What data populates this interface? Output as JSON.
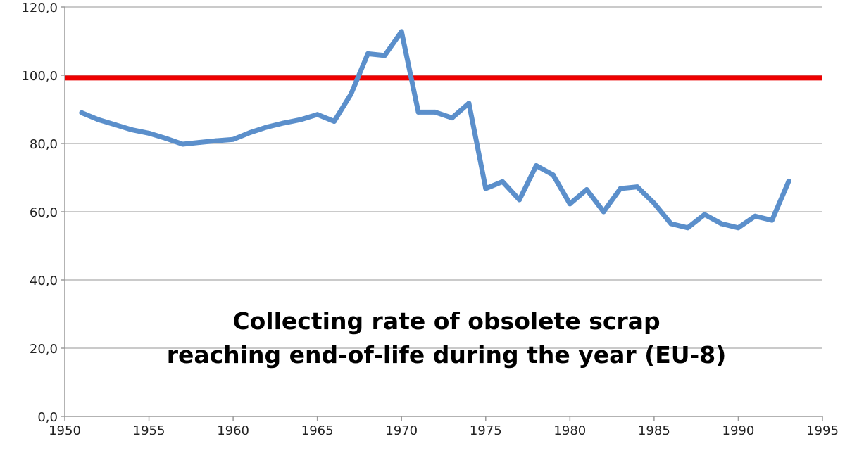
{
  "chart_data": {
    "type": "line",
    "title": "",
    "xlabel": "",
    "ylabel": "",
    "xlim": [
      1950,
      1995
    ],
    "ylim": [
      0,
      120
    ],
    "x_ticks": [
      1950,
      1955,
      1960,
      1965,
      1970,
      1975,
      1980,
      1985,
      1990,
      1995
    ],
    "y_ticks": [
      0,
      20,
      40,
      60,
      80,
      100,
      120
    ],
    "x_tick_labels": [
      "1950",
      "1955",
      "1960",
      "1965",
      "1970",
      "1975",
      "1980",
      "1985",
      "1990",
      "1995"
    ],
    "y_tick_labels": [
      "0,0",
      "20,0",
      "40,0",
      "60,0",
      "80,0",
      "100,0",
      "120,0"
    ],
    "grid": true,
    "legend": "none",
    "annotation_lines": [
      "Collecting rate of obsolete scrap",
      "reaching end-of-life during the year (EU-8)"
    ],
    "series": [
      {
        "color": "#5b8fcb",
        "x": [
          1951,
          1952,
          1953,
          1954,
          1955,
          1956,
          1957,
          1958,
          1959,
          1960,
          1961,
          1962,
          1963,
          1964,
          1965,
          1966,
          1967,
          1968,
          1969,
          1970,
          1971,
          1972,
          1973,
          1974,
          1975,
          1976,
          1977,
          1978,
          1979,
          1980,
          1981,
          1982,
          1983,
          1984,
          1985,
          1986,
          1987,
          1988,
          1989,
          1990,
          1991,
          1992,
          1993
        ],
        "values": [
          89.0,
          87.0,
          85.5,
          84.0,
          83.0,
          81.5,
          79.8,
          80.3,
          80.8,
          81.2,
          83.2,
          84.8,
          86.0,
          87.0,
          88.5,
          86.5,
          94.5,
          106.3,
          105.8,
          112.8,
          89.2,
          89.2,
          87.5,
          91.8,
          66.8,
          68.8,
          63.5,
          73.5,
          70.8,
          62.3,
          66.5,
          60.0,
          66.8,
          67.3,
          62.5,
          56.5,
          55.3,
          59.2,
          56.5,
          55.3,
          58.7,
          57.5,
          69.0
        ]
      }
    ],
    "reference_line": {
      "value": 99.2,
      "color": "#ee0000"
    }
  }
}
